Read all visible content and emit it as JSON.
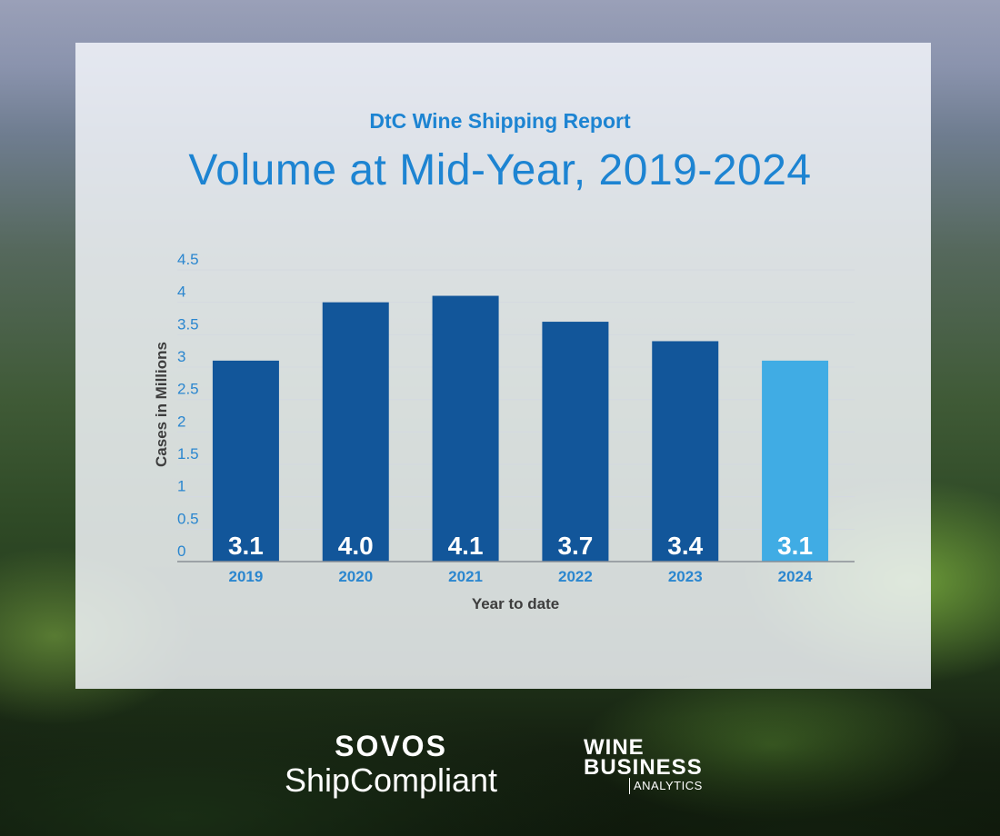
{
  "header": {
    "subtitle": "DtC Wine Shipping Report",
    "title": "Volume at Mid-Year, 2019-2024"
  },
  "chart_data": {
    "type": "bar",
    "categories": [
      "2019",
      "2020",
      "2021",
      "2022",
      "2023",
      "2024"
    ],
    "values": [
      3.1,
      4.0,
      4.1,
      3.7,
      3.4,
      3.1
    ],
    "data_labels": [
      "3.1",
      "4.0",
      "4.1",
      "3.7",
      "3.4",
      "3.1"
    ],
    "highlight_index": 5,
    "xlabel": "Year to date",
    "ylabel": "Cases in Millions",
    "ylim": [
      0,
      4.5
    ],
    "yticks": [
      0,
      0.5,
      1,
      1.5,
      2,
      2.5,
      3,
      3.5,
      4,
      4.5
    ],
    "ytick_labels": [
      "0",
      "0.5",
      "1",
      "1.5",
      "2",
      "2.5",
      "3",
      "3.5",
      "4",
      "4.5"
    ],
    "grid": true,
    "colors": {
      "bar": "#12569a",
      "highlight": "#40ace4",
      "grid": "#d4d9e0",
      "axis": "#8a8f96"
    }
  },
  "logos": {
    "sovos": "SOVOS",
    "shipcompliant": "ShipCompliant",
    "wine": "WINE",
    "business": "BUSINESS",
    "analytics": "ANALYTICS"
  }
}
